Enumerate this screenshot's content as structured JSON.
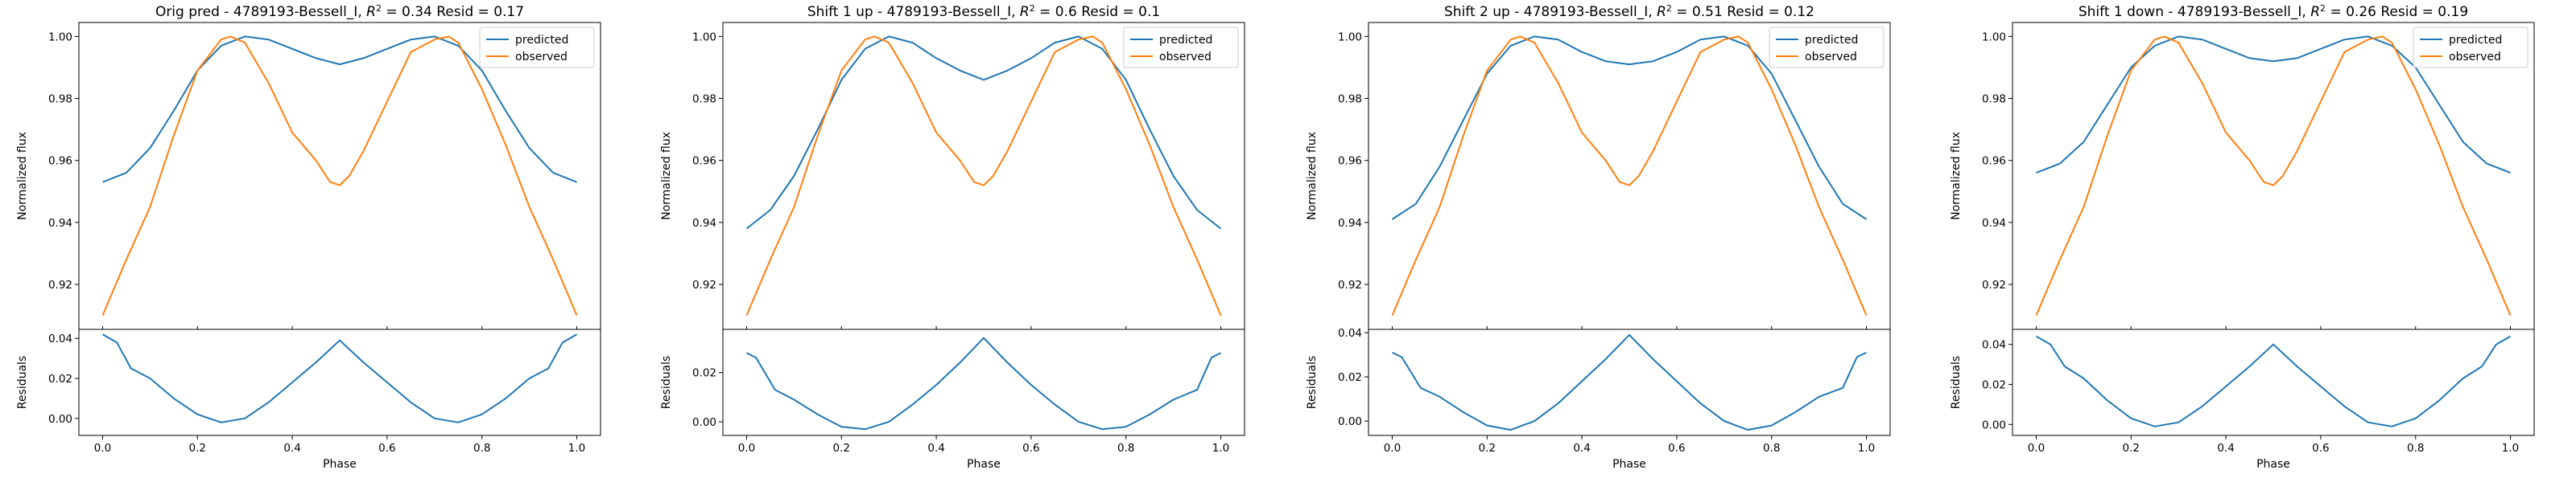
{
  "chart_data": [
    {
      "type": "line",
      "title": "Orig pred - 4789193-Bessell_I, $R^2 = 0.34$ Resid = 0.17",
      "title_parts": {
        "prefix": "Orig pred - 4789193-Bessell_I, ",
        "r2_label": "R",
        "r2_sup": "2",
        "r2_value": " = 0.34",
        "resid": " Resid = 0.17"
      },
      "xlabel": "Phase",
      "ylabel": "Normalized flux",
      "resid_ylabel": "Residuals",
      "xlim": [
        -0.05,
        1.05
      ],
      "ylim": [
        0.9055,
        1.0045
      ],
      "resid_ylim": [
        -0.0085,
        0.0445
      ],
      "x_ticks": [
        "0.0",
        "0.2",
        "0.4",
        "0.6",
        "0.8",
        "1.0"
      ],
      "y_ticks": [
        "0.92",
        "0.94",
        "0.96",
        "0.98",
        "1.00"
      ],
      "resid_ticks": [
        "0.00",
        "0.02",
        "0.04"
      ],
      "legend_position": "upper-right",
      "series": [
        {
          "name": "predicted",
          "color": "#1f77b4",
          "x": [
            0.0,
            0.05,
            0.1,
            0.15,
            0.2,
            0.25,
            0.3,
            0.35,
            0.4,
            0.45,
            0.5,
            0.55,
            0.6,
            0.65,
            0.7,
            0.75,
            0.8,
            0.85,
            0.9,
            0.95,
            1.0
          ],
          "y": [
            0.953,
            0.956,
            0.964,
            0.976,
            0.989,
            0.997,
            1.0,
            0.999,
            0.996,
            0.993,
            0.991,
            0.993,
            0.996,
            0.999,
            1.0,
            0.997,
            0.989,
            0.976,
            0.964,
            0.956,
            0.953
          ]
        },
        {
          "name": "observed",
          "color": "#ff7f0e",
          "x": [
            0.0,
            0.05,
            0.1,
            0.15,
            0.2,
            0.25,
            0.27,
            0.3,
            0.35,
            0.4,
            0.45,
            0.48,
            0.5,
            0.52,
            0.55,
            0.6,
            0.65,
            0.7,
            0.73,
            0.75,
            0.8,
            0.85,
            0.9,
            0.95,
            1.0
          ],
          "y": [
            0.91,
            0.928,
            0.945,
            0.968,
            0.989,
            0.999,
            1.0,
            0.998,
            0.985,
            0.969,
            0.96,
            0.953,
            0.952,
            0.955,
            0.963,
            0.979,
            0.995,
            0.999,
            1.0,
            0.998,
            0.983,
            0.965,
            0.945,
            0.928,
            0.91
          ]
        }
      ],
      "residuals": {
        "name": "residuals",
        "color": "#1f77b4",
        "x": [
          0.0,
          0.03,
          0.06,
          0.1,
          0.15,
          0.2,
          0.25,
          0.3,
          0.35,
          0.4,
          0.45,
          0.5,
          0.55,
          0.6,
          0.65,
          0.7,
          0.75,
          0.8,
          0.85,
          0.9,
          0.94,
          0.97,
          1.0
        ],
        "y": [
          0.042,
          0.038,
          0.025,
          0.02,
          0.01,
          0.002,
          -0.002,
          0.0,
          0.008,
          0.018,
          0.028,
          0.039,
          0.028,
          0.018,
          0.008,
          0.0,
          -0.002,
          0.002,
          0.01,
          0.02,
          0.025,
          0.038,
          0.042
        ]
      }
    },
    {
      "type": "line",
      "title": "Shift 1 up - 4789193-Bessell_I, $R^2 = 0.6$ Resid = 0.1",
      "title_parts": {
        "prefix": "Shift 1 up - 4789193-Bessell_I, ",
        "r2_label": "R",
        "r2_sup": "2",
        "r2_value": " = 0.6",
        "resid": " Resid = 0.1"
      },
      "xlabel": "Phase",
      "ylabel": "Normalized flux",
      "resid_ylabel": "Residuals",
      "xlim": [
        -0.05,
        1.05
      ],
      "ylim": [
        0.9055,
        1.0045
      ],
      "resid_ylim": [
        -0.0055,
        0.0375
      ],
      "x_ticks": [
        "0.0",
        "0.2",
        "0.4",
        "0.6",
        "0.8",
        "1.0"
      ],
      "y_ticks": [
        "0.92",
        "0.94",
        "0.96",
        "0.98",
        "1.00"
      ],
      "resid_ticks": [
        "0.00",
        "0.02"
      ],
      "legend_position": "upper-right",
      "series": [
        {
          "name": "predicted",
          "color": "#1f77b4",
          "x": [
            0.0,
            0.05,
            0.1,
            0.15,
            0.2,
            0.25,
            0.3,
            0.35,
            0.4,
            0.45,
            0.5,
            0.55,
            0.6,
            0.65,
            0.7,
            0.75,
            0.8,
            0.85,
            0.9,
            0.95,
            1.0
          ],
          "y": [
            0.938,
            0.944,
            0.955,
            0.97,
            0.986,
            0.996,
            1.0,
            0.998,
            0.993,
            0.989,
            0.986,
            0.989,
            0.993,
            0.998,
            1.0,
            0.996,
            0.986,
            0.97,
            0.955,
            0.944,
            0.938
          ]
        },
        {
          "name": "observed",
          "color": "#ff7f0e",
          "x": [
            0.0,
            0.05,
            0.1,
            0.15,
            0.2,
            0.25,
            0.27,
            0.3,
            0.35,
            0.4,
            0.45,
            0.48,
            0.5,
            0.52,
            0.55,
            0.6,
            0.65,
            0.7,
            0.73,
            0.75,
            0.8,
            0.85,
            0.9,
            0.95,
            1.0
          ],
          "y": [
            0.91,
            0.928,
            0.945,
            0.968,
            0.989,
            0.999,
            1.0,
            0.998,
            0.985,
            0.969,
            0.96,
            0.953,
            0.952,
            0.955,
            0.963,
            0.979,
            0.995,
            0.999,
            1.0,
            0.998,
            0.983,
            0.965,
            0.945,
            0.928,
            0.91
          ]
        }
      ],
      "residuals": {
        "name": "residuals",
        "color": "#1f77b4",
        "x": [
          0.0,
          0.02,
          0.06,
          0.1,
          0.15,
          0.2,
          0.25,
          0.3,
          0.35,
          0.4,
          0.45,
          0.5,
          0.55,
          0.6,
          0.65,
          0.7,
          0.75,
          0.8,
          0.85,
          0.9,
          0.95,
          0.98,
          1.0
        ],
        "y": [
          0.028,
          0.026,
          0.013,
          0.009,
          0.003,
          -0.002,
          -0.003,
          0.0,
          0.007,
          0.015,
          0.024,
          0.034,
          0.024,
          0.015,
          0.007,
          0.0,
          -0.003,
          -0.002,
          0.003,
          0.009,
          0.013,
          0.026,
          0.028
        ]
      }
    },
    {
      "type": "line",
      "title": "Shift 2 up - 4789193-Bessell_I, $R^2 = 0.51$ Resid = 0.12",
      "title_parts": {
        "prefix": "Shift 2 up - 4789193-Bessell_I, ",
        "r2_label": "R",
        "r2_sup": "2",
        "r2_value": " = 0.51",
        "resid": " Resid = 0.12"
      },
      "xlabel": "Phase",
      "ylabel": "Normalized flux",
      "resid_ylabel": "Residuals",
      "xlim": [
        -0.05,
        1.05
      ],
      "ylim": [
        0.9055,
        1.0045
      ],
      "resid_ylim": [
        -0.0065,
        0.0415
      ],
      "x_ticks": [
        "0.0",
        "0.2",
        "0.4",
        "0.6",
        "0.8",
        "1.0"
      ],
      "y_ticks": [
        "0.92",
        "0.94",
        "0.96",
        "0.98",
        "1.00"
      ],
      "resid_ticks": [
        "0.00",
        "0.02",
        "0.04"
      ],
      "legend_position": "upper-right",
      "series": [
        {
          "name": "predicted",
          "color": "#1f77b4",
          "x": [
            0.0,
            0.05,
            0.1,
            0.15,
            0.2,
            0.25,
            0.3,
            0.35,
            0.4,
            0.45,
            0.5,
            0.55,
            0.6,
            0.65,
            0.7,
            0.75,
            0.8,
            0.85,
            0.9,
            0.95,
            1.0
          ],
          "y": [
            0.941,
            0.946,
            0.958,
            0.973,
            0.988,
            0.997,
            1.0,
            0.999,
            0.995,
            0.992,
            0.991,
            0.992,
            0.995,
            0.999,
            1.0,
            0.997,
            0.988,
            0.973,
            0.958,
            0.946,
            0.941
          ]
        },
        {
          "name": "observed",
          "color": "#ff7f0e",
          "x": [
            0.0,
            0.05,
            0.1,
            0.15,
            0.2,
            0.25,
            0.27,
            0.3,
            0.35,
            0.4,
            0.45,
            0.48,
            0.5,
            0.52,
            0.55,
            0.6,
            0.65,
            0.7,
            0.73,
            0.75,
            0.8,
            0.85,
            0.9,
            0.95,
            1.0
          ],
          "y": [
            0.91,
            0.928,
            0.945,
            0.968,
            0.989,
            0.999,
            1.0,
            0.998,
            0.985,
            0.969,
            0.96,
            0.953,
            0.952,
            0.955,
            0.963,
            0.979,
            0.995,
            0.999,
            1.0,
            0.998,
            0.983,
            0.965,
            0.945,
            0.928,
            0.91
          ]
        }
      ],
      "residuals": {
        "name": "residuals",
        "color": "#1f77b4",
        "x": [
          0.0,
          0.02,
          0.06,
          0.1,
          0.15,
          0.2,
          0.25,
          0.3,
          0.35,
          0.4,
          0.45,
          0.5,
          0.55,
          0.6,
          0.65,
          0.7,
          0.75,
          0.8,
          0.85,
          0.9,
          0.95,
          0.98,
          1.0
        ],
        "y": [
          0.031,
          0.029,
          0.015,
          0.011,
          0.004,
          -0.002,
          -0.004,
          0.0,
          0.008,
          0.018,
          0.028,
          0.039,
          0.028,
          0.018,
          0.008,
          0.0,
          -0.004,
          -0.002,
          0.004,
          0.011,
          0.015,
          0.029,
          0.031
        ]
      }
    },
    {
      "type": "line",
      "title": "Shift 1 down - 4789193-Bessell_I, $R^2 = 0.26$ Resid = 0.19",
      "title_parts": {
        "prefix": "Shift 1 down - 4789193-Bessell_I, ",
        "r2_label": "R",
        "r2_sup": "2",
        "r2_value": " = 0.26",
        "resid": " Resid = 0.19"
      },
      "xlabel": "Phase",
      "ylabel": "Normalized flux",
      "resid_ylabel": "Residuals",
      "xlim": [
        -0.05,
        1.05
      ],
      "ylim": [
        0.9055,
        1.0045
      ],
      "resid_ylim": [
        -0.0055,
        0.0475
      ],
      "x_ticks": [
        "0.0",
        "0.2",
        "0.4",
        "0.6",
        "0.8",
        "1.0"
      ],
      "y_ticks": [
        "0.92",
        "0.94",
        "0.96",
        "0.98",
        "1.00"
      ],
      "resid_ticks": [
        "0.00",
        "0.02",
        "0.04"
      ],
      "legend_position": "upper-right",
      "series": [
        {
          "name": "predicted",
          "color": "#1f77b4",
          "x": [
            0.0,
            0.05,
            0.1,
            0.15,
            0.2,
            0.25,
            0.3,
            0.35,
            0.4,
            0.45,
            0.5,
            0.55,
            0.6,
            0.65,
            0.7,
            0.75,
            0.8,
            0.85,
            0.9,
            0.95,
            1.0
          ],
          "y": [
            0.956,
            0.959,
            0.966,
            0.978,
            0.99,
            0.997,
            1.0,
            0.999,
            0.996,
            0.993,
            0.992,
            0.993,
            0.996,
            0.999,
            1.0,
            0.997,
            0.99,
            0.978,
            0.966,
            0.959,
            0.956
          ]
        },
        {
          "name": "observed",
          "color": "#ff7f0e",
          "x": [
            0.0,
            0.05,
            0.1,
            0.15,
            0.2,
            0.25,
            0.27,
            0.3,
            0.35,
            0.4,
            0.45,
            0.48,
            0.5,
            0.52,
            0.55,
            0.6,
            0.65,
            0.7,
            0.73,
            0.75,
            0.8,
            0.85,
            0.9,
            0.95,
            1.0
          ],
          "y": [
            0.91,
            0.928,
            0.945,
            0.968,
            0.989,
            0.999,
            1.0,
            0.998,
            0.985,
            0.969,
            0.96,
            0.953,
            0.952,
            0.955,
            0.963,
            0.979,
            0.995,
            0.999,
            1.0,
            0.998,
            0.983,
            0.965,
            0.945,
            0.928,
            0.91
          ]
        }
      ],
      "residuals": {
        "name": "residuals",
        "color": "#1f77b4",
        "x": [
          0.0,
          0.03,
          0.06,
          0.1,
          0.15,
          0.2,
          0.25,
          0.3,
          0.35,
          0.4,
          0.45,
          0.5,
          0.55,
          0.6,
          0.65,
          0.7,
          0.75,
          0.8,
          0.85,
          0.9,
          0.94,
          0.97,
          1.0
        ],
        "y": [
          0.044,
          0.04,
          0.029,
          0.023,
          0.012,
          0.003,
          -0.001,
          0.001,
          0.009,
          0.019,
          0.029,
          0.04,
          0.029,
          0.019,
          0.009,
          0.001,
          -0.001,
          0.003,
          0.012,
          0.023,
          0.029,
          0.04,
          0.044
        ]
      }
    }
  ]
}
